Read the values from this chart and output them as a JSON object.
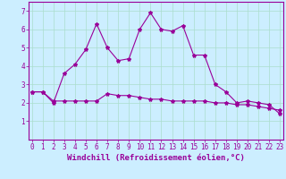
{
  "xlabel": "Windchill (Refroidissement éolien,°C)",
  "bg_color": "#cceeff",
  "line_color": "#990099",
  "grid_color": "#aaddcc",
  "x_line1": [
    0,
    1,
    2,
    3,
    4,
    5,
    6,
    7,
    8,
    9,
    10,
    11,
    12,
    13,
    14,
    15,
    16,
    17,
    18,
    19,
    20,
    21,
    22,
    23
  ],
  "y_line1": [
    2.6,
    2.6,
    2.0,
    3.6,
    4.1,
    4.9,
    6.3,
    5.0,
    4.3,
    4.4,
    6.0,
    6.9,
    6.0,
    5.9,
    6.2,
    4.6,
    4.6,
    3.0,
    2.6,
    2.0,
    2.1,
    2.0,
    1.9,
    1.4
  ],
  "x_line2": [
    0,
    1,
    2,
    3,
    4,
    5,
    6,
    7,
    8,
    9,
    10,
    11,
    12,
    13,
    14,
    15,
    16,
    17,
    18,
    19,
    20,
    21,
    22,
    23
  ],
  "y_line2": [
    2.6,
    2.6,
    2.1,
    2.1,
    2.1,
    2.1,
    2.1,
    2.5,
    2.4,
    2.4,
    2.3,
    2.2,
    2.2,
    2.1,
    2.1,
    2.1,
    2.1,
    2.0,
    2.0,
    1.9,
    1.9,
    1.8,
    1.7,
    1.6
  ],
  "ylim": [
    0,
    7.5
  ],
  "yticks": [
    1,
    2,
    3,
    4,
    5,
    6,
    7
  ],
  "xticks": [
    0,
    1,
    2,
    3,
    4,
    5,
    6,
    7,
    8,
    9,
    10,
    11,
    12,
    13,
    14,
    15,
    16,
    17,
    18,
    19,
    20,
    21,
    22,
    23
  ],
  "xtick_labels": [
    "0",
    "1",
    "2",
    "3",
    "4",
    "5",
    "6",
    "7",
    "8",
    "9",
    "10",
    "11",
    "12",
    "13",
    "14",
    "15",
    "16",
    "17",
    "18",
    "19",
    "20",
    "21",
    "22",
    "23"
  ],
  "xlabel_fontsize": 6.5,
  "tick_fontsize": 5.5,
  "marker": "*",
  "markersize": 3,
  "linewidth": 0.8
}
